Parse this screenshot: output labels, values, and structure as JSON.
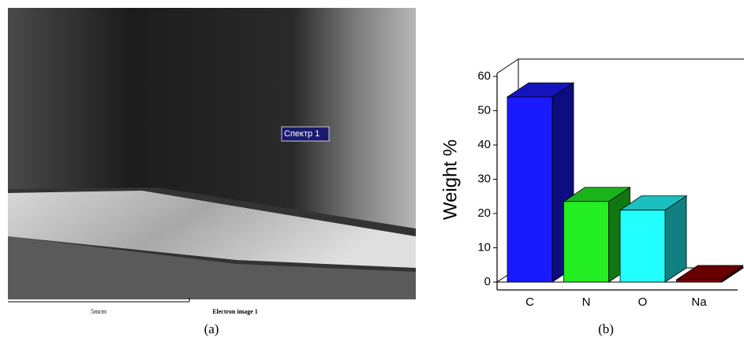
{
  "image": {
    "spot_label": "Спектр 1",
    "scale_label": "5mcm",
    "caption": "Electron image 1",
    "panel_label": "(a)"
  },
  "chart_data": {
    "type": "bar3d",
    "panel_label": "(b)",
    "y_label": "Weight %",
    "categories": [
      "C",
      "N",
      "O",
      "Na"
    ],
    "values": [
      54,
      23.5,
      21,
      0.7
    ],
    "colors": [
      "#1a1aff",
      "#22ee22",
      "#22ffff",
      "#8b0000"
    ],
    "ylim": [
      0,
      60
    ],
    "yticks": [
      0,
      10,
      20,
      30,
      40,
      50,
      60
    ]
  }
}
